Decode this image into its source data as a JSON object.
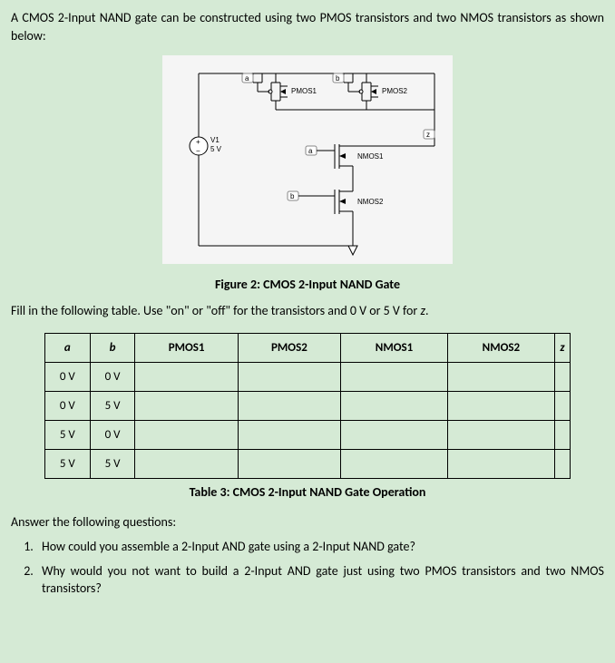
{
  "intro": "A CMOS 2-Input NAND gate can be constructed using two PMOS transistors and two NMOS transistors as shown below:",
  "circuit": {
    "labels": {
      "pmos1": "PMOS1",
      "pmos2": "PMOS2",
      "nmos1": "NMOS1",
      "nmos2": "NMOS2",
      "v1": "V1",
      "v1v": "5 V",
      "a1": "a",
      "a2": "a",
      "b1": "b",
      "b2": "b",
      "z": "z"
    },
    "colors": {
      "bg": "#f5f5f5",
      "wire": "#000000"
    }
  },
  "figcaption": "Figure 2:  CMOS 2-Input NAND Gate",
  "instruction_pre": "Fill in the following table.  Use \"on\" or \"off\" for the transistors and 0 V or 5 V for ",
  "instruction_var": "z",
  "instruction_post": ".",
  "table": {
    "headers": [
      "a",
      "b",
      "PMOS1",
      "PMOS2",
      "NMOS1",
      "NMOS2",
      "z"
    ],
    "header_italic": [
      true,
      true,
      false,
      false,
      false,
      false,
      true
    ],
    "rows": [
      [
        "0 V",
        "0 V",
        "",
        "",
        "",
        "",
        ""
      ],
      [
        "0 V",
        "5 V",
        "",
        "",
        "",
        "",
        ""
      ],
      [
        "5 V",
        "0 V",
        "",
        "",
        "",
        "",
        ""
      ],
      [
        "5 V",
        "5 V",
        "",
        "",
        "",
        "",
        ""
      ]
    ],
    "caption": "Table 3:  CMOS 2-Input NAND Gate Operation"
  },
  "answer_heading": "Answer the following questions:",
  "questions": [
    "How could you assemble a 2-Input AND gate using a 2-Input NAND gate?",
    "Why would you not want to build a 2-Input AND gate just using two PMOS transistors and two NMOS transistors?"
  ]
}
